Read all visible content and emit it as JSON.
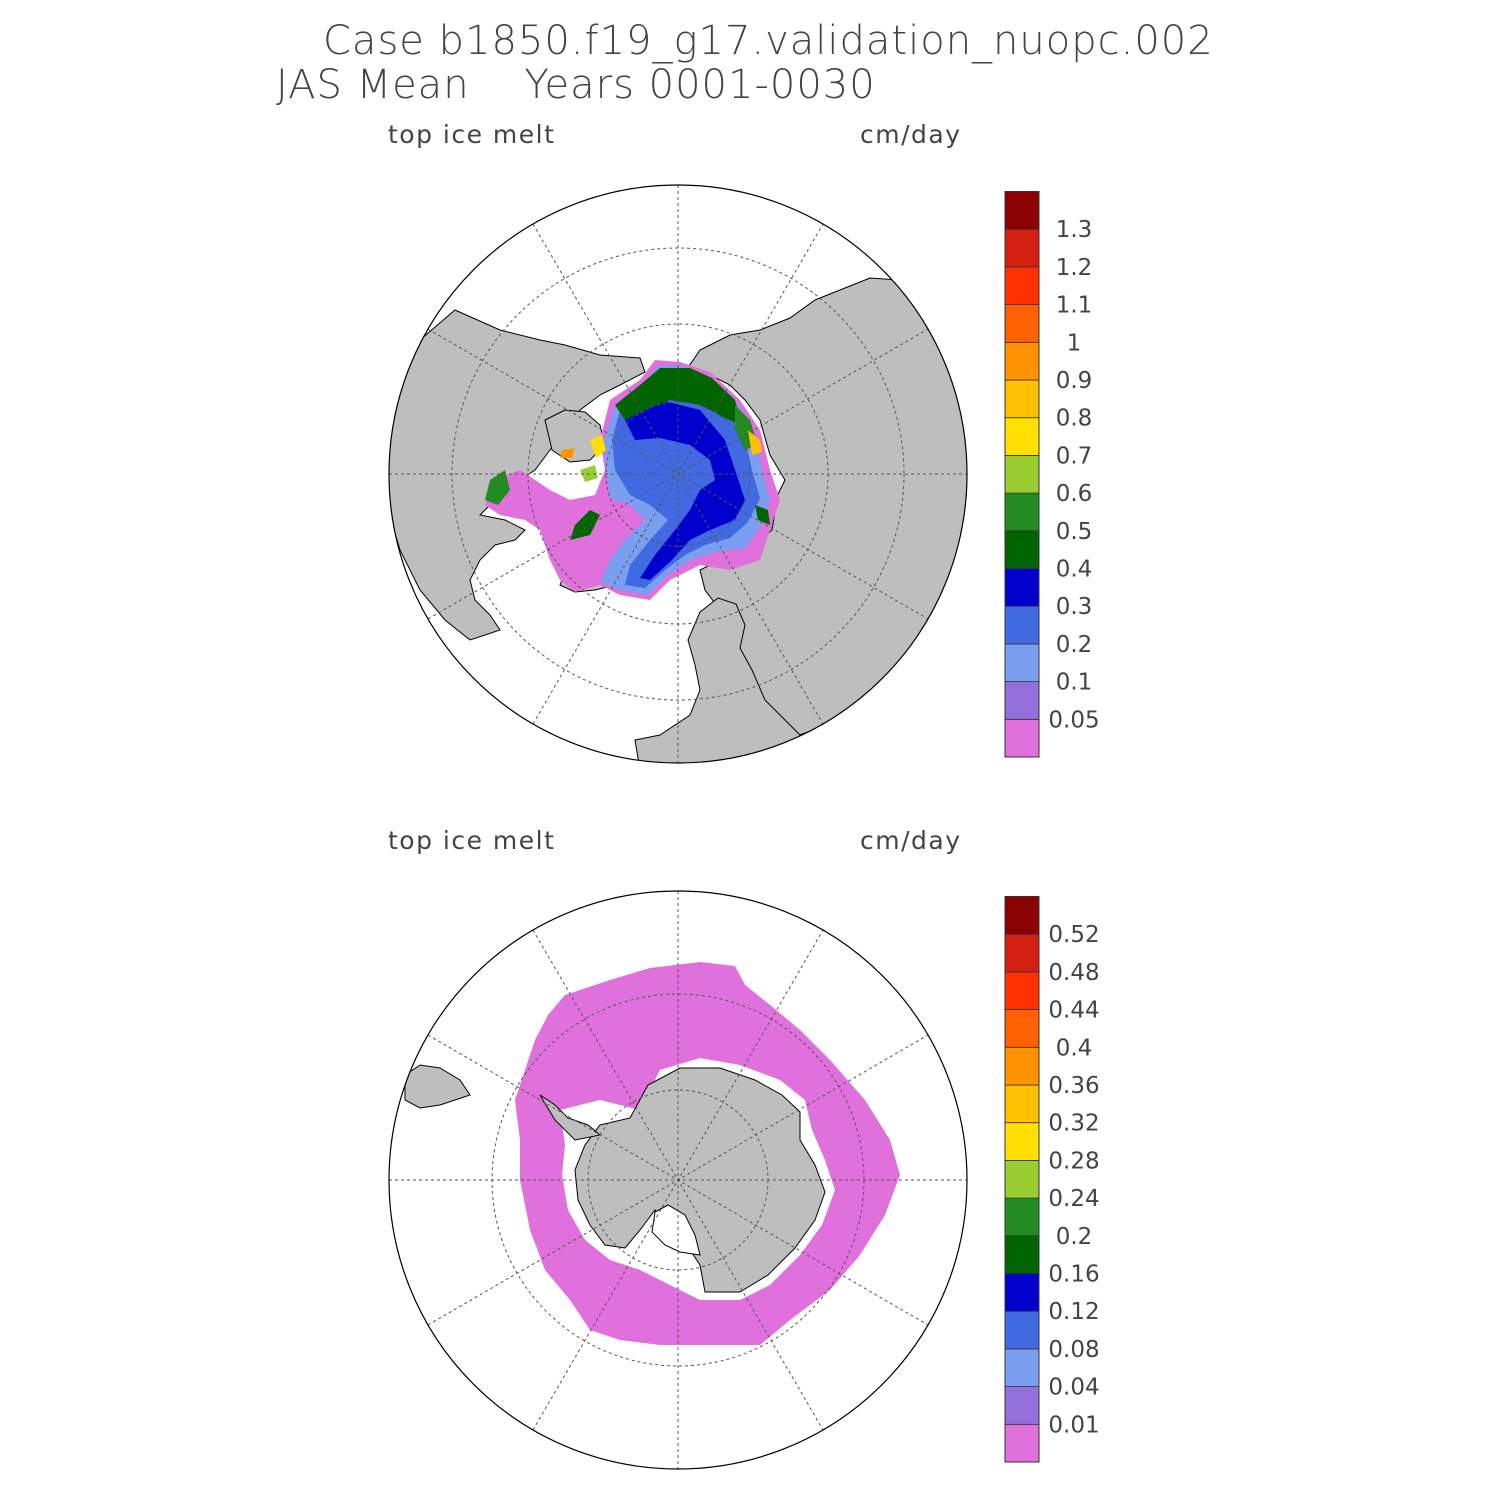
{
  "header": {
    "line1": "Case b1850.f19_g17.validation_nuopc.002",
    "line2": "JAS Mean    Years 0001-0030"
  },
  "panels": [
    {
      "id": "north",
      "variable_label": "top ice melt",
      "units_label": "cm/day",
      "colorbar": {
        "colors": [
          "#e070dc",
          "#9370db",
          "#7a9ff0",
          "#4169e1",
          "#0000cd",
          "#006400",
          "#228b22",
          "#9acd32",
          "#ffe000",
          "#ffc000",
          "#ff9400",
          "#ff6000",
          "#ff3000",
          "#d42010",
          "#8b0000"
        ],
        "tick_labels": [
          "0.05",
          "0.1",
          "0.2",
          "0.3",
          "0.4",
          "0.5",
          "0.6",
          "0.7",
          "0.8",
          "0.9",
          "1",
          "1.1",
          "1.2",
          "1.3"
        ]
      }
    },
    {
      "id": "south",
      "variable_label": "top ice melt",
      "units_label": "cm/day",
      "colorbar": {
        "colors": [
          "#e070dc",
          "#9370db",
          "#7a9ff0",
          "#4169e1",
          "#0000cd",
          "#006400",
          "#228b22",
          "#9acd32",
          "#ffe000",
          "#ffc000",
          "#ff9400",
          "#ff6000",
          "#ff3000",
          "#d42010",
          "#8b0000"
        ],
        "tick_labels": [
          "0.01",
          "0.04",
          "0.08",
          "0.12",
          "0.16",
          "0.2",
          "0.24",
          "0.28",
          "0.32",
          "0.36",
          "0.4",
          "0.44",
          "0.48",
          "0.52"
        ]
      }
    }
  ],
  "map_colors": {
    "land": "#bebebe",
    "ocean": "#ffffff",
    "grid": "#555555"
  }
}
